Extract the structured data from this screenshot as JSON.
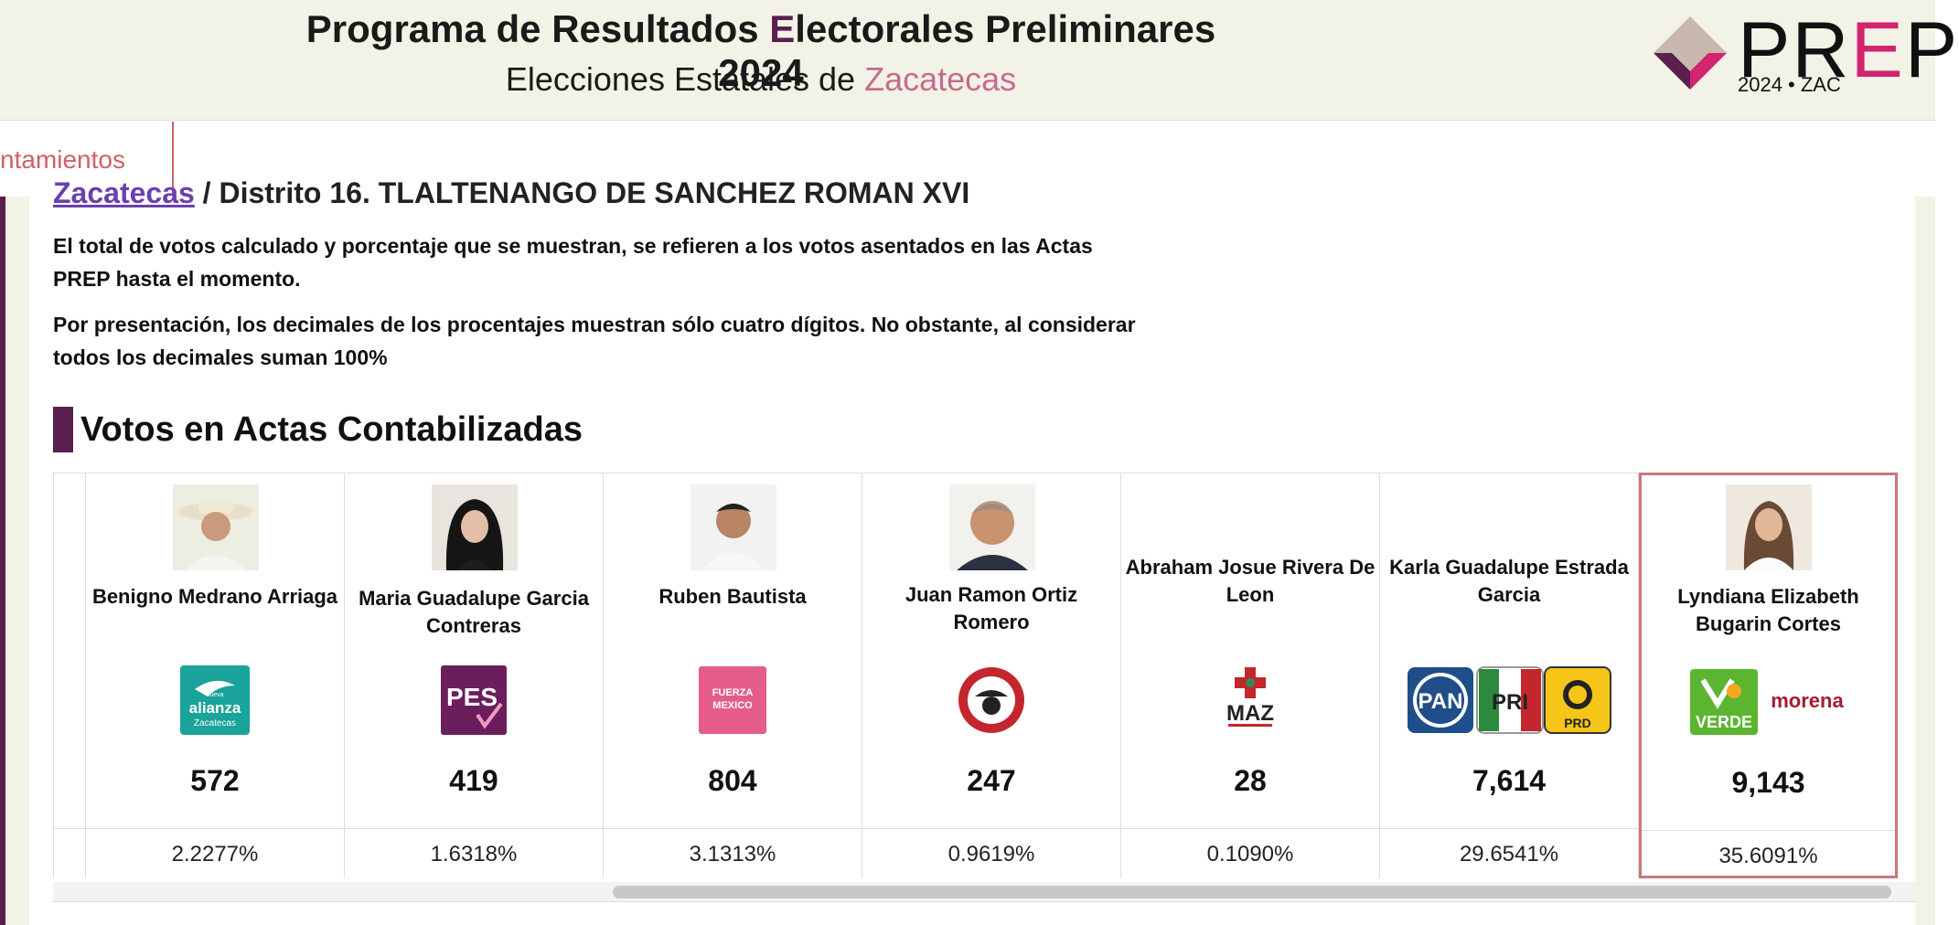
{
  "header": {
    "title_pre": "Programa de Resultados ",
    "title_accent": "E",
    "title_post": "lectorales Preliminares 2024",
    "subtitle_pre": "Elecciones Estatales de ",
    "subtitle_accent": "Zacatecas",
    "logo_word_pre": "PR",
    "logo_word_e": "E",
    "logo_word_post": "P",
    "logo_year": "2024  •  ZAC"
  },
  "tabs": {
    "ayuntamientos": "ntamientos"
  },
  "breadcrumb": {
    "link": "Zacatecas",
    "rest": " / Distrito 16. TLALTENANGO DE SANCHEZ ROMAN XVI"
  },
  "notices": [
    "El total de votos calculado y porcentaje que se muestran, se refieren a los votos asentados en las Actas PREP hasta el momento.",
    "Por presentación, los decimales de los procentajes muestran sólo cuatro dígitos. No obstante, al considerar todos los decimales suman 100%"
  ],
  "section_title": "Votos en Actas Contabilizadas",
  "candidates": [
    {
      "name": "Benigno Medrano Arriaga",
      "party": "Nueva Alianza Zacatecas",
      "votes": "572",
      "pct": "2.2277%"
    },
    {
      "name": "Maria Guadalupe Garcia Contreras",
      "party": "PES",
      "votes": "419",
      "pct": "1.6318%"
    },
    {
      "name": "Ruben Bautista",
      "party": "Fuerza México",
      "votes": "804",
      "pct": "3.1313%"
    },
    {
      "name": "Juan Ramon Ortiz Romero",
      "party": "Revolución Popular",
      "votes": "247",
      "pct": "0.9619%"
    },
    {
      "name": "Abraham Josue Rivera De Leon",
      "party": "MAZ",
      "votes": "28",
      "pct": "0.1090%"
    },
    {
      "name": "Karla Guadalupe Estrada Garcia",
      "party": "PAN PRI PRD",
      "votes": "7,614",
      "pct": "29.6541%"
    },
    {
      "name": "Lyndiana Elizabeth Bugarin Cortes",
      "party": "Verde Morena",
      "votes": "9,143",
      "pct": "35.6091%"
    }
  ],
  "party_text": {
    "alianza_small": "nueva",
    "alianza_main": "alianza",
    "alianza_sub": "Zacatecas",
    "pes": "PES",
    "fuerza_1": "FUERZA",
    "fuerza_2": "MEXICO",
    "maz": "MAZ",
    "pan": "PAN",
    "pri": "PRI",
    "prd": "PRD",
    "verde": "VERDE",
    "morena": "morena"
  },
  "colors": {
    "brand_purple": "#5a1f4e",
    "accent_pink": "#c76b8f",
    "winner_border": "#c9777f"
  }
}
